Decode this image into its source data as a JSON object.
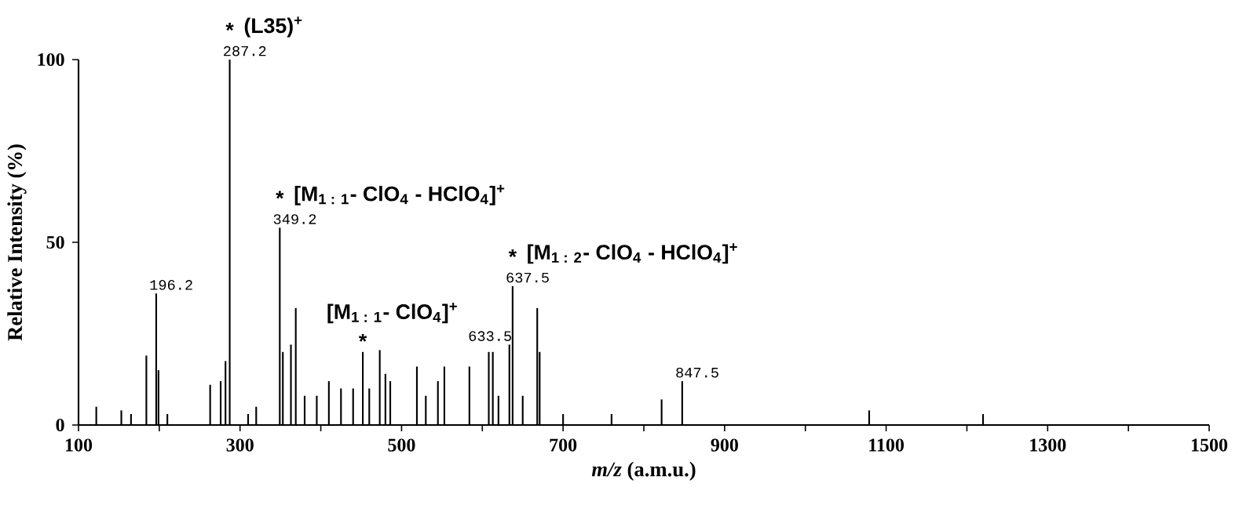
{
  "chart_data": {
    "type": "bar",
    "xlabel": "*m/z* (a.m.u.)",
    "ylabel": "Relative Intensity (%)",
    "color": "#000000",
    "x": [
      122,
      153,
      165,
      184,
      196.2,
      199,
      210,
      263,
      276,
      282,
      287.2,
      310,
      320,
      349.2,
      353,
      363,
      369,
      380,
      395,
      410,
      425,
      440,
      452,
      460,
      473,
      480,
      486,
      519,
      530,
      545,
      553,
      584,
      608,
      613,
      620,
      633.5,
      637.5,
      650,
      668,
      671,
      700,
      760,
      822,
      847.5,
      1079,
      1220
    ],
    "values": [
      5,
      4,
      3,
      19,
      36,
      15,
      3,
      11,
      12,
      17.5,
      100,
      3,
      5,
      54,
      20,
      22,
      32,
      8,
      8,
      12,
      10,
      10,
      20,
      10,
      20.5,
      14,
      12,
      16,
      8,
      12,
      16,
      16,
      20,
      20,
      8,
      22,
      38,
      8,
      32,
      20,
      3,
      3,
      7,
      12,
      4,
      3
    ],
    "xlim": [
      100,
      1500
    ],
    "ylim": [
      0,
      100
    ],
    "xticks": [
      100,
      {
        "value": 200,
        "label": null
      },
      300,
      {
        "value": 400,
        "label": null
      },
      500,
      {
        "value": 600,
        "label": null
      },
      700,
      {
        "value": 800,
        "label": null
      },
      900,
      {
        "value": 1000,
        "label": null
      },
      1100,
      {
        "value": 1200,
        "label": null
      },
      1300,
      {
        "value": 1400,
        "label": null
      },
      1500
    ],
    "yticks": [
      0,
      50,
      100
    ],
    "annotations": [
      {
        "text": "287.2",
        "x": 287.2,
        "y": 100
      },
      {
        "text": "196.2",
        "x": 196.2,
        "y": 36
      },
      {
        "text": "349.2",
        "x": 349.2,
        "y": 54
      },
      {
        "text": "637.5",
        "x": 637.5,
        "y": 38
      },
      {
        "text": "633.5",
        "x": 633.5,
        "y": 22
      },
      {
        "text": "847.5",
        "x": 847.5,
        "y": 12
      },
      {
        "text": "*",
        "x": 287.2,
        "y": 100
      },
      {
        "text": "(L35)$^{+}$",
        "x": 287.2,
        "y": 100
      },
      {
        "text": "*",
        "x": 349.2,
        "y": 54
      },
      {
        "text": "[M$_{1 : 1}$- ClO$_{4}$ - HClO$_{4}$]$^{+}$",
        "x": 349.2,
        "y": 54
      },
      {
        "text": "*",
        "x": 452,
        "y": 20
      },
      {
        "text": "[M$_{1 : 1}$- ClO$_{4}$]$^{+}$",
        "x": 452,
        "y": 20
      },
      {
        "text": "*",
        "x": 637.5,
        "y": 38
      },
      {
        "text": "[M$_{1 : 2}$- ClO$_{4}$ - HClO$_{4}$]$^{+}$",
        "x": 637.5,
        "y": 38
      }
    ]
  }
}
